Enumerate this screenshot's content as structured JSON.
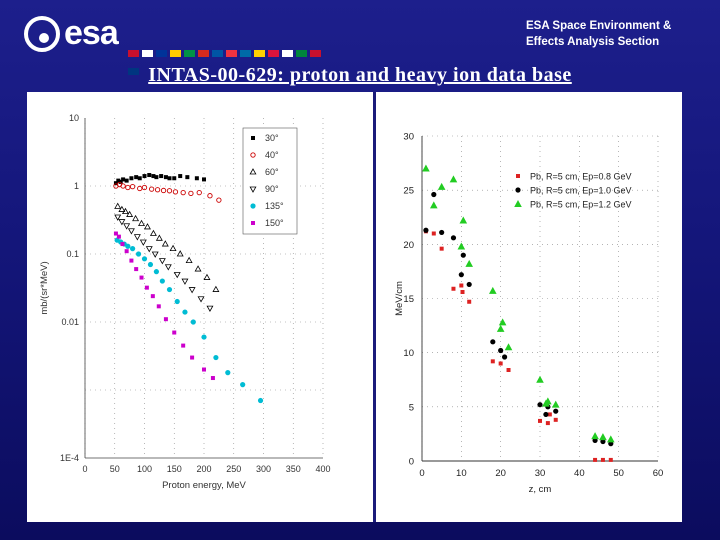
{
  "header": {
    "logo_text": "esa",
    "org_line1": "ESA Space Environment &",
    "org_line2": "Effects Analysis Section",
    "flag_colors": [
      "#c8102e",
      "#ffffff",
      "#003399",
      "#ffcc00",
      "#009246",
      "#d52b1e",
      "#0055a4",
      "#ef3340",
      "#006aa7",
      "#ffd100",
      "#dc143c",
      "#ffffff",
      "#00843d",
      "#c8102e",
      "#003580"
    ]
  },
  "slide_title": "INTAS-00-629: proton and heavy ion data base",
  "chart_data": [
    {
      "type": "scatter",
      "xlabel": "Proton energy, MeV",
      "ylabel": "mb/(sr*MeV)",
      "log_y": true,
      "xlim": [
        0,
        400
      ],
      "ylim": [
        0.0001,
        10
      ],
      "xticks": [
        "0",
        "50",
        "100",
        "150",
        "200",
        "250",
        "300",
        "350",
        "400"
      ],
      "yticks": [
        "1E-4",
        "0.01",
        "0.1",
        "1",
        "10"
      ],
      "legend_position": "top-right",
      "grid": true,
      "series": [
        {
          "name": "30°",
          "color": "#000000",
          "marker": "square",
          "points": [
            [
              52,
              1.1
            ],
            [
              56,
              1.2
            ],
            [
              60,
              1.15
            ],
            [
              64,
              1.25
            ],
            [
              70,
              1.2
            ],
            [
              78,
              1.3
            ],
            [
              86,
              1.35
            ],
            [
              92,
              1.3
            ],
            [
              100,
              1.4
            ],
            [
              108,
              1.45
            ],
            [
              115,
              1.4
            ],
            [
              120,
              1.35
            ],
            [
              128,
              1.4
            ],
            [
              136,
              1.35
            ],
            [
              142,
              1.3
            ],
            [
              150,
              1.3
            ],
            [
              160,
              1.4
            ],
            [
              172,
              1.35
            ],
            [
              188,
              1.3
            ],
            [
              200,
              1.25
            ]
          ]
        },
        {
          "name": "40°",
          "color": "#cc0000",
          "marker": "circle-open",
          "points": [
            [
              52,
              1.0
            ],
            [
              58,
              1.05
            ],
            [
              64,
              1.0
            ],
            [
              72,
              0.95
            ],
            [
              80,
              0.98
            ],
            [
              92,
              0.92
            ],
            [
              100,
              0.95
            ],
            [
              112,
              0.9
            ],
            [
              122,
              0.88
            ],
            [
              132,
              0.86
            ],
            [
              142,
              0.85
            ],
            [
              152,
              0.82
            ],
            [
              165,
              0.8
            ],
            [
              178,
              0.78
            ],
            [
              192,
              0.8
            ],
            [
              210,
              0.72
            ],
            [
              225,
              0.62
            ]
          ]
        },
        {
          "name": "60°",
          "color": "#000000",
          "marker": "triangle-open",
          "points": [
            [
              55,
              0.5
            ],
            [
              62,
              0.45
            ],
            [
              68,
              0.42
            ],
            [
              75,
              0.38
            ],
            [
              85,
              0.33
            ],
            [
              95,
              0.28
            ],
            [
              105,
              0.25
            ],
            [
              115,
              0.2
            ],
            [
              125,
              0.17
            ],
            [
              135,
              0.14
            ],
            [
              148,
              0.12
            ],
            [
              160,
              0.1
            ],
            [
              175,
              0.08
            ],
            [
              190,
              0.06
            ],
            [
              205,
              0.045
            ],
            [
              220,
              0.03
            ]
          ]
        },
        {
          "name": "90°",
          "color": "#000000",
          "marker": "triangle-down-open",
          "points": [
            [
              55,
              0.35
            ],
            [
              62,
              0.3
            ],
            [
              70,
              0.26
            ],
            [
              78,
              0.22
            ],
            [
              88,
              0.18
            ],
            [
              98,
              0.15
            ],
            [
              108,
              0.12
            ],
            [
              118,
              0.1
            ],
            [
              130,
              0.08
            ],
            [
              140,
              0.065
            ],
            [
              155,
              0.05
            ],
            [
              168,
              0.04
            ],
            [
              180,
              0.03
            ],
            [
              195,
              0.022
            ],
            [
              210,
              0.016
            ]
          ]
        },
        {
          "name": "135°",
          "color": "#00bcd4",
          "marker": "circle",
          "points": [
            [
              54,
              0.16
            ],
            [
              60,
              0.15
            ],
            [
              66,
              0.14
            ],
            [
              72,
              0.13
            ],
            [
              80,
              0.12
            ],
            [
              90,
              0.1
            ],
            [
              100,
              0.085
            ],
            [
              110,
              0.07
            ],
            [
              120,
              0.055
            ],
            [
              130,
              0.04
            ],
            [
              142,
              0.03
            ],
            [
              155,
              0.02
            ],
            [
              168,
              0.014
            ],
            [
              182,
              0.01
            ],
            [
              200,
              0.006
            ],
            [
              220,
              0.003
            ],
            [
              240,
              0.0018
            ],
            [
              265,
              0.0012
            ],
            [
              295,
              0.0007
            ]
          ]
        },
        {
          "name": "150°",
          "color": "#cc00cc",
          "marker": "square",
          "points": [
            [
              52,
              0.2
            ],
            [
              57,
              0.18
            ],
            [
              63,
              0.14
            ],
            [
              70,
              0.11
            ],
            [
              78,
              0.08
            ],
            [
              86,
              0.06
            ],
            [
              95,
              0.045
            ],
            [
              104,
              0.032
            ],
            [
              114,
              0.024
            ],
            [
              124,
              0.017
            ],
            [
              136,
              0.011
            ],
            [
              150,
              0.007
            ],
            [
              165,
              0.0045
            ],
            [
              180,
              0.003
            ],
            [
              200,
              0.002
            ],
            [
              215,
              0.0015
            ]
          ]
        }
      ]
    },
    {
      "type": "scatter",
      "xlabel": "z, cm",
      "ylabel": "MeV/cm",
      "xlim": [
        0,
        60
      ],
      "ylim": [
        0,
        30
      ],
      "xticks": [
        "0",
        "10",
        "20",
        "30",
        "40",
        "50",
        "60"
      ],
      "yticks": [
        "0",
        "5",
        "10",
        "15",
        "20",
        "25",
        "30"
      ],
      "legend_position": "top-right",
      "grid": true,
      "series": [
        {
          "name": "Pb, R=5 cm, Ep=0.8 GeV",
          "color": "#dd2222",
          "marker": "square",
          "points": [
            [
              1,
              21.2
            ],
            [
              3,
              21
            ],
            [
              5,
              19.6
            ],
            [
              8,
              15.9
            ],
            [
              10,
              16.2
            ],
            [
              10.3,
              15.6
            ],
            [
              12,
              14.7
            ],
            [
              18,
              9.2
            ],
            [
              20,
              9
            ],
            [
              22,
              8.4
            ],
            [
              30,
              3.7
            ],
            [
              32,
              3.5
            ],
            [
              32.5,
              4.3
            ],
            [
              34,
              3.8
            ],
            [
              44,
              0.1
            ],
            [
              46,
              0.1
            ],
            [
              48,
              0.1
            ]
          ]
        },
        {
          "name": "Pb, R=5 cm, Ep=1.0 GeV",
          "color": "#000000",
          "marker": "circle",
          "points": [
            [
              1,
              21.3
            ],
            [
              3,
              24.6
            ],
            [
              5,
              21.1
            ],
            [
              8,
              20.6
            ],
            [
              10,
              17.2
            ],
            [
              10.5,
              19
            ],
            [
              12,
              16.3
            ],
            [
              18,
              11
            ],
            [
              20,
              10.2
            ],
            [
              21,
              9.6
            ],
            [
              30,
              5.2
            ],
            [
              31.5,
              4.3
            ],
            [
              32,
              5
            ],
            [
              34,
              4.6
            ],
            [
              44,
              1.9
            ],
            [
              46,
              1.8
            ],
            [
              48,
              1.6
            ]
          ]
        },
        {
          "name": "Pb, R=5 cm, Ep=1.2 GeV",
          "color": "#22cc22",
          "marker": "triangle",
          "points": [
            [
              1,
              27
            ],
            [
              3,
              23.6
            ],
            [
              5,
              25.3
            ],
            [
              8,
              26
            ],
            [
              10,
              19.8
            ],
            [
              10.5,
              22.2
            ],
            [
              12,
              18.2
            ],
            [
              18,
              15.7
            ],
            [
              20,
              12.2
            ],
            [
              20.5,
              12.8
            ],
            [
              22,
              10.5
            ],
            [
              30,
              7.5
            ],
            [
              31.5,
              5.3
            ],
            [
              32,
              5.5
            ],
            [
              34,
              5.2
            ],
            [
              44,
              2.3
            ],
            [
              46,
              2.2
            ],
            [
              48,
              2.0
            ]
          ]
        }
      ]
    }
  ]
}
